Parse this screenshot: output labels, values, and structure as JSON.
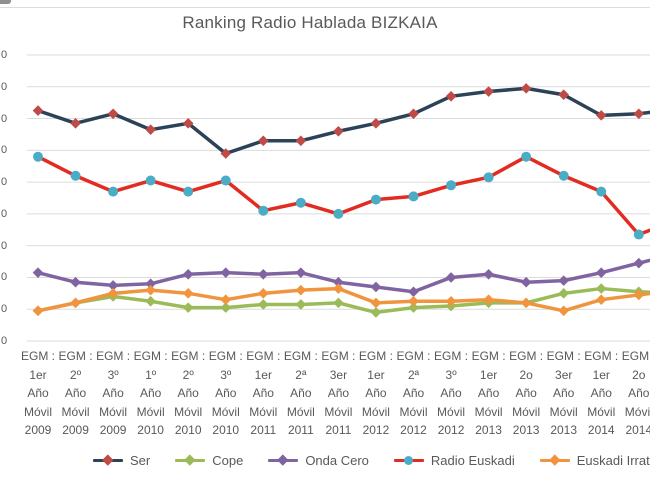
{
  "title": "Ranking Radio Hablada BIZKAIA",
  "colors": {
    "title_text": "#595959",
    "axis_text": "#595959",
    "gridline": "#dbdbdb",
    "background": "#ffffff"
  },
  "chart_data": {
    "type": "line",
    "title": "Ranking Radio Hablada BIZKAIA",
    "xlabel": "",
    "ylabel": "",
    "grid": true,
    "legend_position": "bottom",
    "y_axis": {
      "min": 0,
      "max": 180,
      "step": 20,
      "tick_labels_visible": [
        "0",
        "0",
        "0",
        "0",
        "0",
        "0",
        "0",
        "0",
        "0",
        "0"
      ]
    },
    "x_tick_lines": [
      [
        "EGM :",
        "1er",
        "Año",
        "Móvil",
        "2009"
      ],
      [
        "EGM :",
        "2º",
        "Año",
        "Móvil",
        "2009"
      ],
      [
        "EGM :",
        "3º",
        "Año",
        "Móvil",
        "2009"
      ],
      [
        "EGM :",
        "1º",
        "Año",
        "Móvil",
        "2010"
      ],
      [
        "EGM :",
        "2º",
        "Año",
        "Móvil",
        "2010"
      ],
      [
        "EGM :",
        "3º",
        "Año",
        "Móvil",
        "2010"
      ],
      [
        "EGM :",
        "1er",
        "Año",
        "Móvil",
        "2011"
      ],
      [
        "EGM :",
        "2ª",
        "Año",
        "Móvil",
        "2011"
      ],
      [
        "EGM :",
        "3er",
        "Año",
        "Móvil",
        "2011"
      ],
      [
        "EGM :",
        "1er",
        "Año",
        "Móvil",
        "2012"
      ],
      [
        "EGM :",
        "2ª",
        "Año",
        "Móvil",
        "2012"
      ],
      [
        "EGM :",
        "3º",
        "Año",
        "Móvil",
        "2012"
      ],
      [
        "EGM :",
        "1er",
        "Año",
        "Móvil",
        "2013"
      ],
      [
        "EGM :",
        "2o",
        "Año",
        "Móvil",
        "2013"
      ],
      [
        "EGM :",
        "3er",
        "Año",
        "Móvil",
        "2013"
      ],
      [
        "EGM :",
        "1er",
        "Año",
        "Móvil",
        "2014"
      ],
      [
        "EGM :",
        "2o",
        "Año",
        "Móvil",
        "2014"
      ]
    ],
    "series": [
      {
        "name": "Ser",
        "line_color": "#2c4257",
        "marker_color": "#be4b48",
        "marker": "diamond",
        "values": [
          145,
          137,
          143,
          133,
          137,
          118,
          126,
          126,
          132,
          137,
          143,
          154,
          157,
          159,
          155,
          142,
          143
        ],
        "edge_continuation_value": 146
      },
      {
        "name": "Cope",
        "line_color": "#9bbb59",
        "marker_color": "#9bbb59",
        "marker": "diamond",
        "values": [
          19,
          24,
          28,
          25,
          21,
          21,
          23,
          23,
          24,
          18,
          21,
          22,
          24,
          24,
          30,
          33,
          31
        ],
        "edge_continuation_value": 30
      },
      {
        "name": "Onda Cero",
        "line_color": "#8064a2",
        "marker_color": "#8064a2",
        "marker": "diamond",
        "values": [
          43,
          37,
          35,
          36,
          42,
          43,
          42,
          43,
          37,
          34,
          31,
          40,
          42,
          37,
          38,
          43,
          49
        ],
        "edge_continuation_value": 55
      },
      {
        "name": "Radio Euskadi",
        "line_color": "#e32b22",
        "marker_color": "#4bacc6",
        "marker": "circle",
        "values": [
          116,
          104,
          94,
          101,
          94,
          101,
          82,
          87,
          80,
          89,
          91,
          98,
          103,
          116,
          104,
          94,
          67
        ],
        "edge_continuation_value": 76
      },
      {
        "name": "Euskadi Irratia",
        "line_color": "#f0943e",
        "marker_color": "#f0943e",
        "marker": "diamond",
        "values": [
          19,
          24,
          30,
          32,
          30,
          26,
          30,
          32,
          33,
          24,
          25,
          25,
          26,
          24,
          19,
          26,
          29
        ],
        "edge_continuation_value": 32
      }
    ]
  }
}
